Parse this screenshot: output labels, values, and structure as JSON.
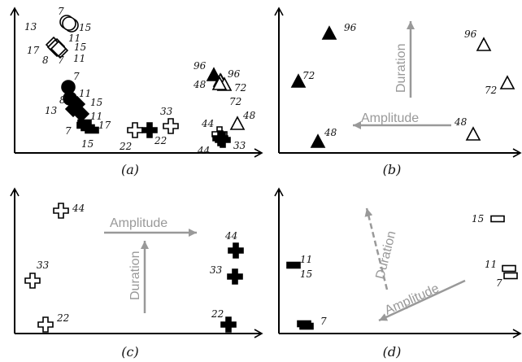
{
  "chart_data": [
    {
      "type": "scatter",
      "panel": "a",
      "caption": "(a)",
      "series": [
        {
          "shape": "circle",
          "filled": false,
          "labels": [
            "7",
            "13",
            "15"
          ]
        },
        {
          "shape": "diamond",
          "filled": false,
          "labels": [
            "17",
            "8",
            "7",
            "11",
            "15",
            "11"
          ]
        },
        {
          "shape": "circle",
          "filled": true,
          "labels": [
            "7",
            "8"
          ]
        },
        {
          "shape": "diamond",
          "filled": true,
          "labels": [
            "13",
            "11",
            "15"
          ]
        },
        {
          "shape": "bar",
          "filled": true,
          "labels": [
            "7",
            "11",
            "17",
            "15"
          ]
        },
        {
          "shape": "cross",
          "filled": false,
          "labels": [
            "22",
            "33"
          ]
        },
        {
          "shape": "cross",
          "filled": true,
          "labels": [
            "22"
          ]
        },
        {
          "shape": "triangle",
          "filled": true,
          "labels": [
            "96",
            "48"
          ]
        },
        {
          "shape": "triangle",
          "filled": false,
          "labels": [
            "96",
            "72",
            "72",
            "48"
          ]
        },
        {
          "shape": "cross",
          "filled": false,
          "labels": [
            "44"
          ]
        },
        {
          "shape": "cross",
          "filled": true,
          "labels": [
            "44",
            "33"
          ]
        }
      ]
    },
    {
      "type": "scatter",
      "panel": "b",
      "caption": "(b)",
      "axis_arrows": [
        "Duration",
        "Amplitude"
      ],
      "series": [
        {
          "shape": "triangle",
          "filled": true,
          "labels": [
            "96",
            "72",
            "48"
          ]
        },
        {
          "shape": "triangle",
          "filled": false,
          "labels": [
            "96",
            "72",
            "48"
          ]
        }
      ]
    },
    {
      "type": "scatter",
      "panel": "c",
      "caption": "(c)",
      "axis_arrows": [
        "Amplitude",
        "Duration"
      ],
      "series": [
        {
          "shape": "cross",
          "filled": false,
          "labels": [
            "44",
            "33",
            "22"
          ]
        },
        {
          "shape": "cross",
          "filled": true,
          "labels": [
            "44",
            "33",
            "22"
          ]
        }
      ]
    },
    {
      "type": "scatter",
      "panel": "d",
      "caption": "(d)",
      "axis_arrows": [
        "Duration",
        "Amplitude"
      ],
      "series": [
        {
          "shape": "bar",
          "filled": true,
          "labels": [
            "11",
            "15",
            "7"
          ]
        },
        {
          "shape": "bar",
          "filled": false,
          "labels": [
            "15",
            "11",
            "7"
          ]
        }
      ]
    }
  ]
}
